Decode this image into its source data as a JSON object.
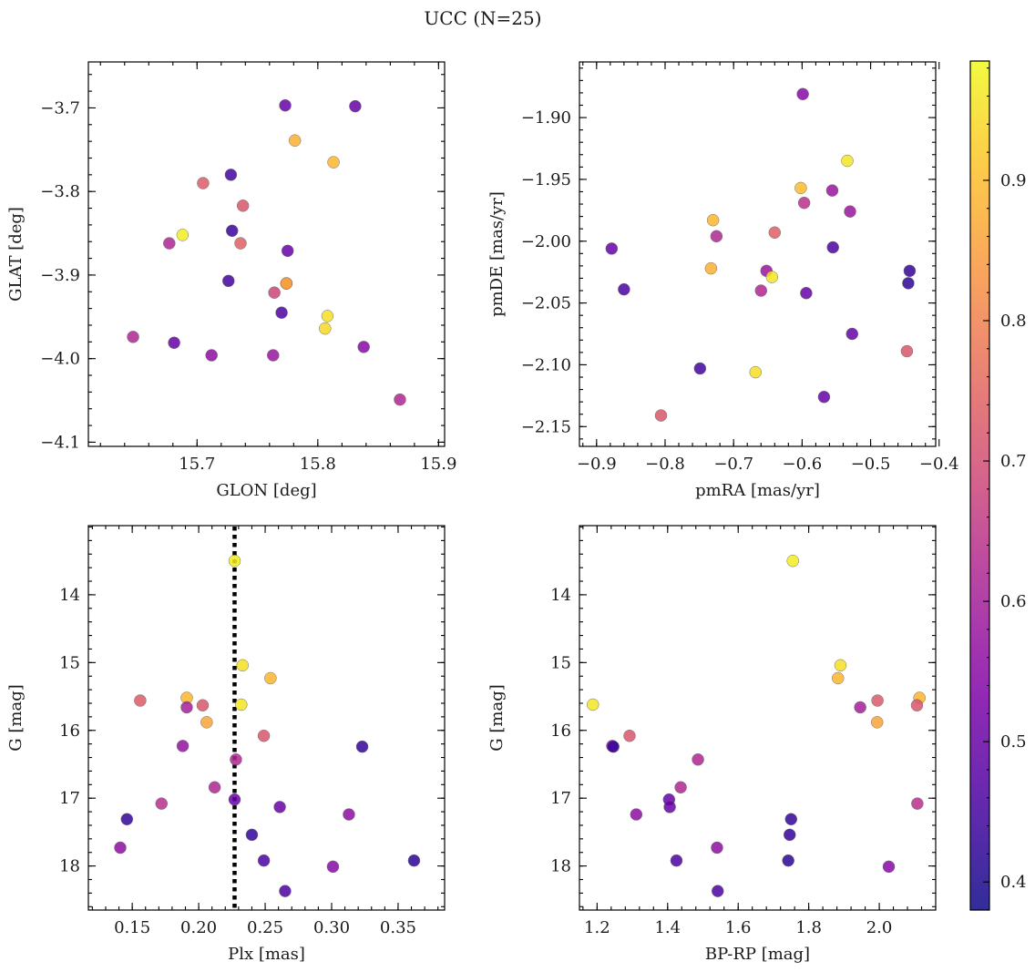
{
  "title": "UCC (N=25)",
  "colormap": "plasma",
  "colorbar": {
    "range": [
      0.38,
      0.985
    ],
    "ticks": [
      0.4,
      0.5,
      0.6,
      0.7,
      0.8,
      0.9
    ],
    "tick_labels": [
      "0.4",
      "0.5",
      "0.6",
      "0.7",
      "0.8",
      "0.9"
    ],
    "placement": "right"
  },
  "chart_data": [
    {
      "type": "scatter",
      "xlabel": "GLON [deg]",
      "ylabel": "GLAT [deg]",
      "xlim": [
        15.61,
        15.905
      ],
      "ylim": [
        -4.105,
        -3.645
      ],
      "xticks": [
        15.7,
        15.8,
        15.9
      ],
      "xtick_labels": [
        "15.7",
        "15.8",
        "15.9"
      ],
      "yticks": [
        -4.1,
        -4.0,
        -3.9,
        -3.8,
        -3.7
      ],
      "ytick_labels": [
        "−4.1",
        "−4.0",
        "−3.9",
        "−3.8",
        "−3.7"
      ],
      "invert_y": false,
      "points": [
        {
          "x": 15.773,
          "y": -3.697,
          "c": 0.5
        },
        {
          "x": 15.831,
          "y": -3.698,
          "c": 0.5
        },
        {
          "x": 15.781,
          "y": -3.739,
          "c": 0.88
        },
        {
          "x": 15.813,
          "y": -3.765,
          "c": 0.89
        },
        {
          "x": 15.728,
          "y": -3.78,
          "c": 0.45
        },
        {
          "x": 15.705,
          "y": -3.79,
          "c": 0.73
        },
        {
          "x": 15.738,
          "y": -3.817,
          "c": 0.72
        },
        {
          "x": 15.729,
          "y": -3.847,
          "c": 0.44
        },
        {
          "x": 15.688,
          "y": -3.852,
          "c": 0.97
        },
        {
          "x": 15.677,
          "y": -3.862,
          "c": 0.62
        },
        {
          "x": 15.736,
          "y": -3.862,
          "c": 0.74
        },
        {
          "x": 15.775,
          "y": -3.871,
          "c": 0.5
        },
        {
          "x": 15.726,
          "y": -3.907,
          "c": 0.45
        },
        {
          "x": 15.774,
          "y": -3.91,
          "c": 0.79
        },
        {
          "x": 15.774,
          "y": -3.91,
          "c": 0.86
        },
        {
          "x": 15.764,
          "y": -3.921,
          "c": 0.68
        },
        {
          "x": 15.77,
          "y": -3.945,
          "c": 0.46
        },
        {
          "x": 15.808,
          "y": -3.949,
          "c": 0.95
        },
        {
          "x": 15.806,
          "y": -3.964,
          "c": 0.94
        },
        {
          "x": 15.647,
          "y": -3.974,
          "c": 0.62
        },
        {
          "x": 15.681,
          "y": -3.981,
          "c": 0.5
        },
        {
          "x": 15.838,
          "y": -3.986,
          "c": 0.55
        },
        {
          "x": 15.712,
          "y": -3.996,
          "c": 0.56
        },
        {
          "x": 15.763,
          "y": -3.996,
          "c": 0.58
        },
        {
          "x": 15.868,
          "y": -4.049,
          "c": 0.62
        }
      ]
    },
    {
      "type": "scatter",
      "xlabel": "pmRA [mas/yr]",
      "ylabel": "pmDE [mas/yr]",
      "xlim": [
        -0.925,
        -0.405
      ],
      "ylim": [
        -2.166,
        -1.855
      ],
      "xticks": [
        -0.9,
        -0.8,
        -0.7,
        -0.6,
        -0.5,
        -0.4
      ],
      "xtick_labels": [
        "−0.9",
        "−0.8",
        "−0.7",
        "−0.6",
        "−0.5",
        "−0.4"
      ],
      "yticks": [
        -2.15,
        -2.1,
        -2.05,
        -2.0,
        -1.95,
        -1.9
      ],
      "ytick_labels": [
        "−2.15",
        "−2.10",
        "−2.05",
        "−2.00",
        "−1.95",
        "−1.90"
      ],
      "invert_y": false,
      "points": [
        {
          "x": -0.599,
          "y": -1.881,
          "c": 0.55
        },
        {
          "x": -0.534,
          "y": -1.935,
          "c": 0.96
        },
        {
          "x": -0.602,
          "y": -1.957,
          "c": 0.9
        },
        {
          "x": -0.556,
          "y": -1.959,
          "c": 0.58
        },
        {
          "x": -0.597,
          "y": -1.969,
          "c": 0.64
        },
        {
          "x": -0.53,
          "y": -1.976,
          "c": 0.58
        },
        {
          "x": -0.73,
          "y": -1.983,
          "c": 0.89
        },
        {
          "x": -0.64,
          "y": -1.993,
          "c": 0.74
        },
        {
          "x": -0.725,
          "y": -1.996,
          "c": 0.62
        },
        {
          "x": -0.878,
          "y": -2.006,
          "c": 0.5
        },
        {
          "x": -0.555,
          "y": -2.005,
          "c": 0.46
        },
        {
          "x": -0.733,
          "y": -2.022,
          "c": 0.88
        },
        {
          "x": -0.652,
          "y": -2.024,
          "c": 0.58
        },
        {
          "x": -0.443,
          "y": -2.024,
          "c": 0.43
        },
        {
          "x": -0.644,
          "y": -2.029,
          "c": 0.96
        },
        {
          "x": -0.445,
          "y": -2.034,
          "c": 0.42
        },
        {
          "x": -0.86,
          "y": -2.039,
          "c": 0.46
        },
        {
          "x": -0.66,
          "y": -2.04,
          "c": 0.62
        },
        {
          "x": -0.594,
          "y": -2.042,
          "c": 0.5
        },
        {
          "x": -0.527,
          "y": -2.075,
          "c": 0.5
        },
        {
          "x": -0.447,
          "y": -2.089,
          "c": 0.72
        },
        {
          "x": -0.749,
          "y": -2.103,
          "c": 0.45
        },
        {
          "x": -0.668,
          "y": -2.106,
          "c": 0.95
        },
        {
          "x": -0.568,
          "y": -2.126,
          "c": 0.5
        },
        {
          "x": -0.806,
          "y": -2.141,
          "c": 0.72
        }
      ]
    },
    {
      "type": "scatter",
      "xlabel": "Plx [mas]",
      "ylabel": "G [mag]",
      "xlim": [
        0.117,
        0.385
      ],
      "ylim": [
        18.65,
        12.98
      ],
      "xticks": [
        0.15,
        0.2,
        0.25,
        0.3,
        0.35
      ],
      "xtick_labels": [
        "0.15",
        "0.20",
        "0.25",
        "0.30",
        "0.35"
      ],
      "yticks": [
        14,
        15,
        16,
        17,
        18
      ],
      "ytick_labels": [
        "14",
        "15",
        "16",
        "17",
        "18"
      ],
      "invert_y": true,
      "vline": {
        "x": 0.227,
        "style": "dotted"
      },
      "points": [
        {
          "x": 0.227,
          "y": 13.5,
          "c": 0.97
        },
        {
          "x": 0.233,
          "y": 15.04,
          "c": 0.95
        },
        {
          "x": 0.254,
          "y": 15.23,
          "c": 0.89
        },
        {
          "x": 0.191,
          "y": 15.52,
          "c": 0.89
        },
        {
          "x": 0.156,
          "y": 15.56,
          "c": 0.73
        },
        {
          "x": 0.232,
          "y": 15.62,
          "c": 0.96
        },
        {
          "x": 0.203,
          "y": 15.63,
          "c": 0.72
        },
        {
          "x": 0.191,
          "y": 15.66,
          "c": 0.6
        },
        {
          "x": 0.206,
          "y": 15.88,
          "c": 0.86
        },
        {
          "x": 0.249,
          "y": 16.08,
          "c": 0.72
        },
        {
          "x": 0.188,
          "y": 16.23,
          "c": 0.57
        },
        {
          "x": 0.323,
          "y": 16.24,
          "c": 0.43
        },
        {
          "x": 0.228,
          "y": 16.43,
          "c": 0.62
        },
        {
          "x": 0.212,
          "y": 16.84,
          "c": 0.62
        },
        {
          "x": 0.227,
          "y": 17.02,
          "c": 0.5
        },
        {
          "x": 0.172,
          "y": 17.08,
          "c": 0.64
        },
        {
          "x": 0.261,
          "y": 17.13,
          "c": 0.5
        },
        {
          "x": 0.313,
          "y": 17.24,
          "c": 0.56
        },
        {
          "x": 0.146,
          "y": 17.31,
          "c": 0.43
        },
        {
          "x": 0.24,
          "y": 17.54,
          "c": 0.43
        },
        {
          "x": 0.141,
          "y": 17.73,
          "c": 0.56
        },
        {
          "x": 0.249,
          "y": 17.92,
          "c": 0.46
        },
        {
          "x": 0.362,
          "y": 17.92,
          "c": 0.42
        },
        {
          "x": 0.301,
          "y": 18.01,
          "c": 0.55
        },
        {
          "x": 0.265,
          "y": 18.37,
          "c": 0.46
        }
      ]
    },
    {
      "type": "scatter",
      "xlabel": "BP-RP [mag]",
      "ylabel": "G [mag]",
      "xlim": [
        1.15,
        2.16
      ],
      "ylim": [
        18.65,
        12.98
      ],
      "xticks": [
        1.2,
        1.4,
        1.6,
        1.8,
        2.0
      ],
      "xtick_labels": [
        "1.2",
        "1.4",
        "1.6",
        "1.8",
        "2.0"
      ],
      "yticks": [
        14,
        15,
        16,
        17,
        18
      ],
      "ytick_labels": [
        "14",
        "15",
        "16",
        "17",
        "18"
      ],
      "invert_y": true,
      "points": [
        {
          "x": 1.755,
          "y": 13.5,
          "c": 0.97
        },
        {
          "x": 1.89,
          "y": 15.04,
          "c": 0.95
        },
        {
          "x": 1.883,
          "y": 15.23,
          "c": 0.89
        },
        {
          "x": 2.114,
          "y": 15.52,
          "c": 0.89
        },
        {
          "x": 1.995,
          "y": 15.56,
          "c": 0.73
        },
        {
          "x": 1.188,
          "y": 15.62,
          "c": 0.96
        },
        {
          "x": 2.107,
          "y": 15.63,
          "c": 0.72
        },
        {
          "x": 1.946,
          "y": 15.66,
          "c": 0.6
        },
        {
          "x": 1.994,
          "y": 15.88,
          "c": 0.86
        },
        {
          "x": 1.292,
          "y": 16.08,
          "c": 0.72
        },
        {
          "x": 1.243,
          "y": 16.23,
          "c": 0.57
        },
        {
          "x": 1.246,
          "y": 16.24,
          "c": 0.43
        },
        {
          "x": 1.486,
          "y": 16.43,
          "c": 0.62
        },
        {
          "x": 1.437,
          "y": 16.84,
          "c": 0.62
        },
        {
          "x": 1.404,
          "y": 17.02,
          "c": 0.5
        },
        {
          "x": 2.108,
          "y": 17.08,
          "c": 0.64
        },
        {
          "x": 1.406,
          "y": 17.13,
          "c": 0.5
        },
        {
          "x": 1.311,
          "y": 17.24,
          "c": 0.56
        },
        {
          "x": 1.75,
          "y": 17.31,
          "c": 0.43
        },
        {
          "x": 1.746,
          "y": 17.54,
          "c": 0.43
        },
        {
          "x": 1.54,
          "y": 17.73,
          "c": 0.56
        },
        {
          "x": 1.425,
          "y": 17.92,
          "c": 0.46
        },
        {
          "x": 1.742,
          "y": 17.92,
          "c": 0.42
        },
        {
          "x": 2.027,
          "y": 18.01,
          "c": 0.55
        },
        {
          "x": 1.542,
          "y": 18.37,
          "c": 0.46
        }
      ]
    }
  ]
}
